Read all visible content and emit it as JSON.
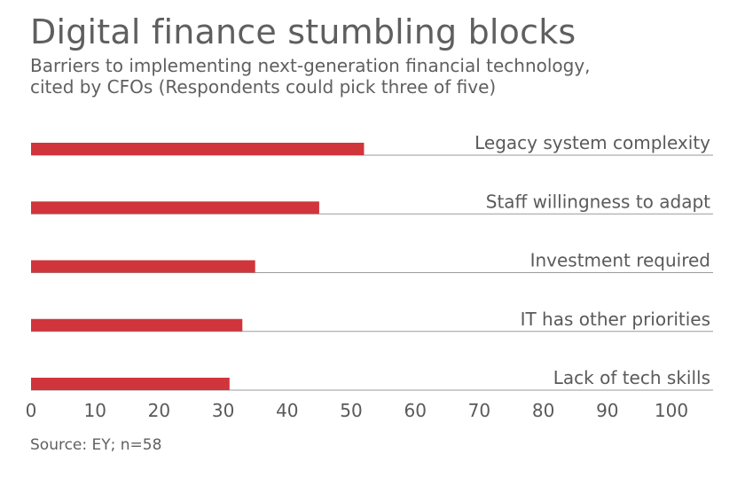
{
  "chart_data": {
    "type": "bar",
    "orientation": "horizontal",
    "title": "Digital finance stumbling blocks",
    "subtitle": "Barriers to implementing next-generation financial technology, cited by CFOs (Respondents could pick three of five)",
    "subtitle_lines": [
      "Barriers to implementing next-generation financial technology,",
      "cited by CFOs (Respondents could pick three of five)"
    ],
    "categories": [
      "Legacy system complexity",
      "Staff willingness to adapt",
      "Investment required",
      "IT has other priorities",
      "Lack of tech skills"
    ],
    "values": [
      52,
      45,
      35,
      33,
      31
    ],
    "xlim": [
      0,
      100
    ],
    "xticks": [
      0,
      10,
      20,
      30,
      40,
      50,
      60,
      70,
      80,
      90,
      100
    ],
    "xlabel": "",
    "ylabel": "",
    "source": "Source: EY; n=58",
    "bar_color": "#d0353b",
    "line_color": "#9a9a9a"
  }
}
